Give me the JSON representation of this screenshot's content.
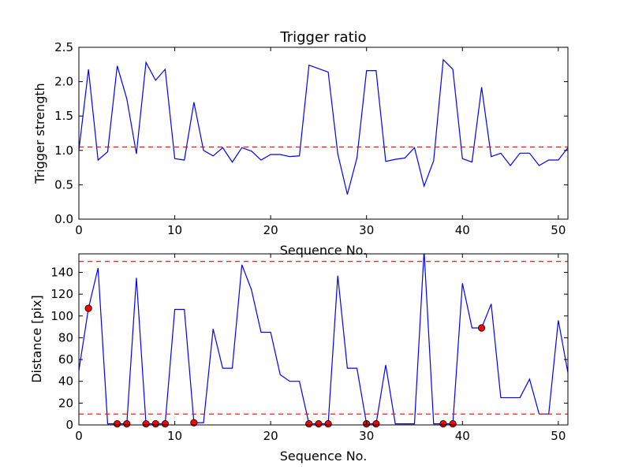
{
  "chart_data": [
    {
      "type": "line",
      "title": "Trigger ratio",
      "xlabel": "Sequence No.",
      "ylabel": "Trigger strength",
      "xlim": [
        0,
        51
      ],
      "ylim": [
        0,
        2.5
      ],
      "xticks": [
        "0",
        "10",
        "20",
        "30",
        "40",
        "50"
      ],
      "yticks": [
        "0.0",
        "0.5",
        "1.0",
        "1.5",
        "2.0",
        "2.5"
      ],
      "grid": false,
      "line_color": "#0000ff",
      "series": [
        {
          "x": [
            0,
            1,
            2,
            3,
            4,
            5,
            6,
            7,
            8,
            9,
            10,
            11,
            12,
            13,
            14,
            15,
            16,
            17,
            18,
            19,
            20,
            21,
            22,
            23,
            24,
            25,
            26,
            27,
            28,
            29,
            30,
            31,
            32,
            33,
            34,
            35,
            36,
            37,
            38,
            39,
            40,
            41,
            42,
            43,
            44,
            45,
            46,
            47,
            48,
            49,
            50,
            51
          ],
          "values": [
            1.0,
            2.18,
            0.86,
            0.98,
            2.23,
            1.75,
            0.95,
            2.28,
            2.02,
            2.18,
            0.88,
            0.86,
            1.7,
            1.0,
            0.92,
            1.04,
            0.83,
            1.04,
            0.99,
            0.86,
            0.94,
            0.94,
            0.91,
            0.92,
            2.24,
            2.19,
            2.14,
            0.95,
            0.36,
            0.89,
            2.16,
            2.16,
            0.84,
            0.87,
            0.89,
            1.04,
            0.48,
            0.85,
            2.32,
            2.18,
            0.88,
            0.83,
            1.92,
            0.91,
            0.96,
            0.78,
            0.96,
            0.96,
            0.78,
            0.86,
            0.86,
            1.04
          ]
        }
      ],
      "reference_lines": [
        {
          "y": 1.05,
          "style": "dashed",
          "color": "#ff0000"
        }
      ]
    },
    {
      "type": "line",
      "title": "",
      "xlabel": "Sequence No.",
      "ylabel": "Distance [pix]",
      "xlim": [
        0,
        51
      ],
      "ylim": [
        0,
        157
      ],
      "xticks": [
        "0",
        "10",
        "20",
        "30",
        "40",
        "50"
      ],
      "yticks": [
        "0",
        "20",
        "40",
        "60",
        "80",
        "100",
        "120",
        "140"
      ],
      "grid": false,
      "line_color": "#0000ff",
      "series": [
        {
          "x": [
            0,
            1,
            2,
            3,
            4,
            5,
            6,
            7,
            8,
            9,
            10,
            11,
            12,
            13,
            14,
            15,
            16,
            17,
            18,
            19,
            20,
            21,
            22,
            23,
            24,
            25,
            26,
            27,
            28,
            29,
            30,
            31,
            32,
            33,
            34,
            35,
            36,
            37,
            38,
            39,
            40,
            41,
            42,
            43,
            44,
            45,
            46,
            47,
            48,
            49,
            50,
            51
          ],
          "values": [
            50,
            107,
            144,
            1,
            1,
            1,
            135,
            1,
            1,
            1,
            106,
            106,
            2,
            2,
            88,
            52,
            52,
            147,
            124,
            85,
            85,
            46,
            40,
            40,
            1,
            1,
            1,
            137,
            52,
            52,
            1,
            1,
            55,
            1,
            1,
            1,
            160,
            1,
            1,
            1,
            130,
            89,
            89,
            111,
            25,
            25,
            25,
            42,
            10,
            10,
            96,
            48
          ]
        }
      ],
      "markers": {
        "color": "#ff0000",
        "x": [
          1,
          4,
          5,
          7,
          8,
          9,
          12,
          24,
          25,
          26,
          30,
          31,
          38,
          39,
          42
        ],
        "y": [
          107,
          1,
          1,
          1,
          1,
          1,
          2,
          1,
          1,
          1,
          1,
          1,
          1,
          1,
          89
        ]
      },
      "reference_lines": [
        {
          "y": 150,
          "style": "dashed",
          "color": "#ff0000"
        },
        {
          "y": 10,
          "style": "dashed",
          "color": "#ff0000"
        }
      ]
    }
  ]
}
